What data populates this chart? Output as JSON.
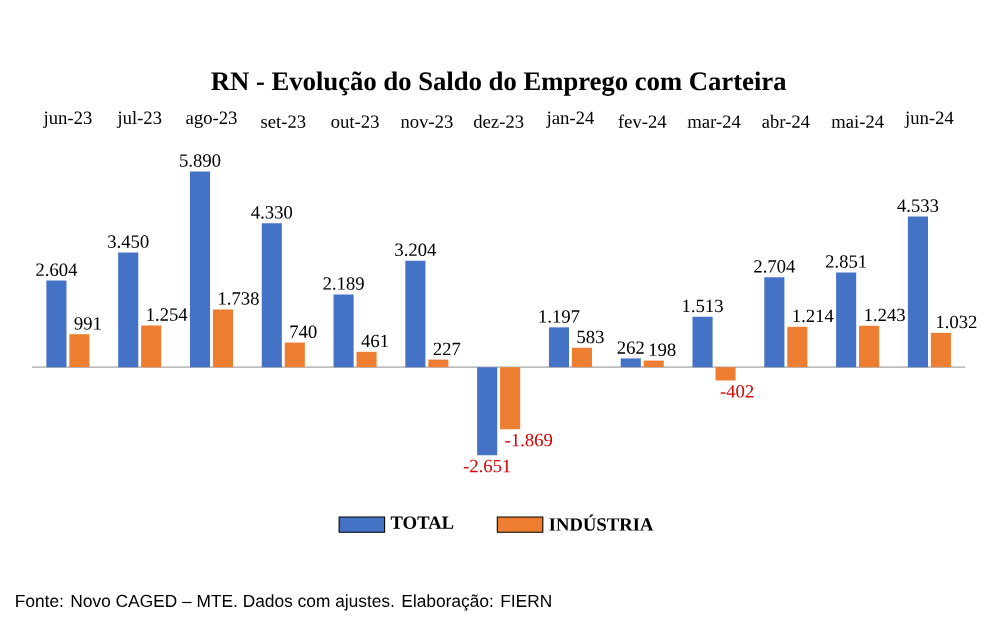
{
  "chart_data": {
    "type": "bar",
    "title": "RN - Evolução do Saldo do Emprego com Carteira",
    "categories": [
      "jun-23",
      "jul-23",
      "ago-23",
      "set-23",
      "out-23",
      "nov-23",
      "dez-23",
      "jan-24",
      "fev-24",
      "mar-24",
      "abr-24",
      "mai-24",
      "jun-24"
    ],
    "series": [
      {
        "name": "TOTAL",
        "color": "#4472c4",
        "values": [
          2604,
          3450,
          5890,
          4330,
          2189,
          3204,
          -2651,
          1197,
          262,
          1513,
          2704,
          2851,
          4533
        ],
        "value_labels": [
          "2.604",
          "3.450",
          "5.890",
          "4.330",
          "2.189",
          "3.204",
          "-2.651",
          "1.197",
          "262",
          "1.513",
          "2.704",
          "2.851",
          "4.533"
        ]
      },
      {
        "name": "INDÚSTRIA",
        "color": "#ed7d31",
        "values": [
          991,
          1254,
          1738,
          740,
          461,
          227,
          -1869,
          583,
          198,
          -402,
          1214,
          1243,
          1032
        ],
        "value_labels": [
          "991",
          "1.254",
          "1.738",
          "740",
          "461",
          "227",
          "-1.869",
          "583",
          "198",
          "-402",
          "1.214",
          "1.243",
          "1.032"
        ]
      }
    ],
    "legend": "bottom",
    "annotations": [
      "Fonte: Novo CAGED – MTE. Dados com ajustes. Elaboração: FIERN"
    ]
  }
}
